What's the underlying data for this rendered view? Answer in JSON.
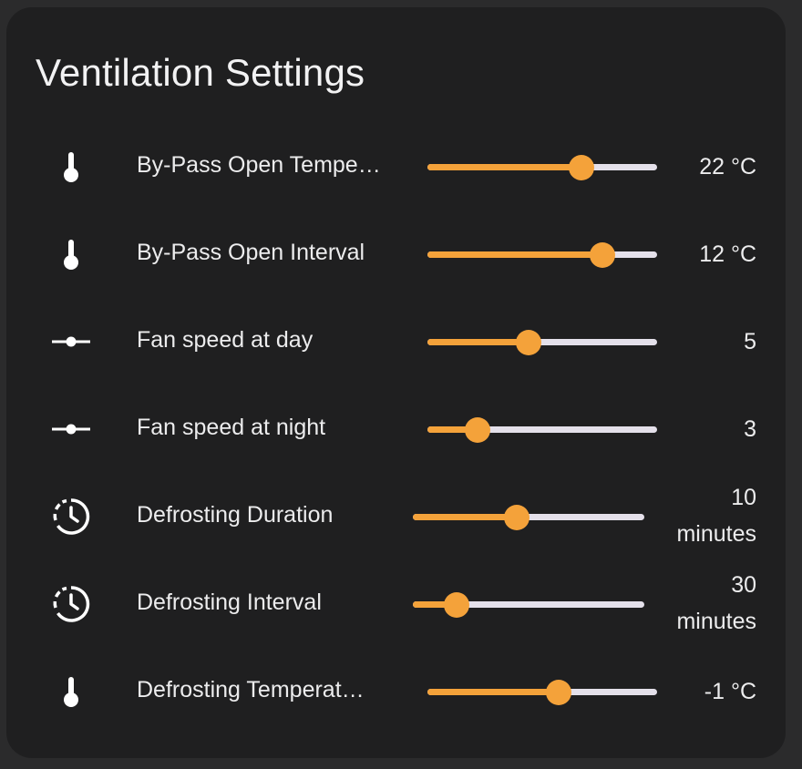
{
  "card": {
    "title": "Ventilation Settings"
  },
  "colors": {
    "accent": "#f4a23a",
    "track": "#e4e0ea",
    "card_bg": "#1f1f20"
  },
  "rows": [
    {
      "icon": "thermometer-icon",
      "label": "By-Pass Open Tempe…",
      "value_line1": "22 °C",
      "value_line2": "",
      "slider_fraction": 0.67
    },
    {
      "icon": "thermometer-icon",
      "label": "By-Pass Open Interval",
      "value_line1": "12 °C",
      "value_line2": "",
      "slider_fraction": 0.76
    },
    {
      "icon": "slider-icon",
      "label": "Fan speed at day",
      "value_line1": "5",
      "value_line2": "",
      "slider_fraction": 0.44
    },
    {
      "icon": "slider-icon",
      "label": "Fan speed at night",
      "value_line1": "3",
      "value_line2": "",
      "slider_fraction": 0.22
    },
    {
      "icon": "timer-icon",
      "label": "Defrosting Duration",
      "value_line1": "10",
      "value_line2": "minutes",
      "slider_fraction": 0.45
    },
    {
      "icon": "timer-icon",
      "label": "Defrosting Interval",
      "value_line1": "30",
      "value_line2": "minutes",
      "slider_fraction": 0.19
    },
    {
      "icon": "thermometer-icon",
      "label": "Defrosting Temperat…",
      "value_line1": "-1 °C",
      "value_line2": "",
      "slider_fraction": 0.57
    }
  ]
}
